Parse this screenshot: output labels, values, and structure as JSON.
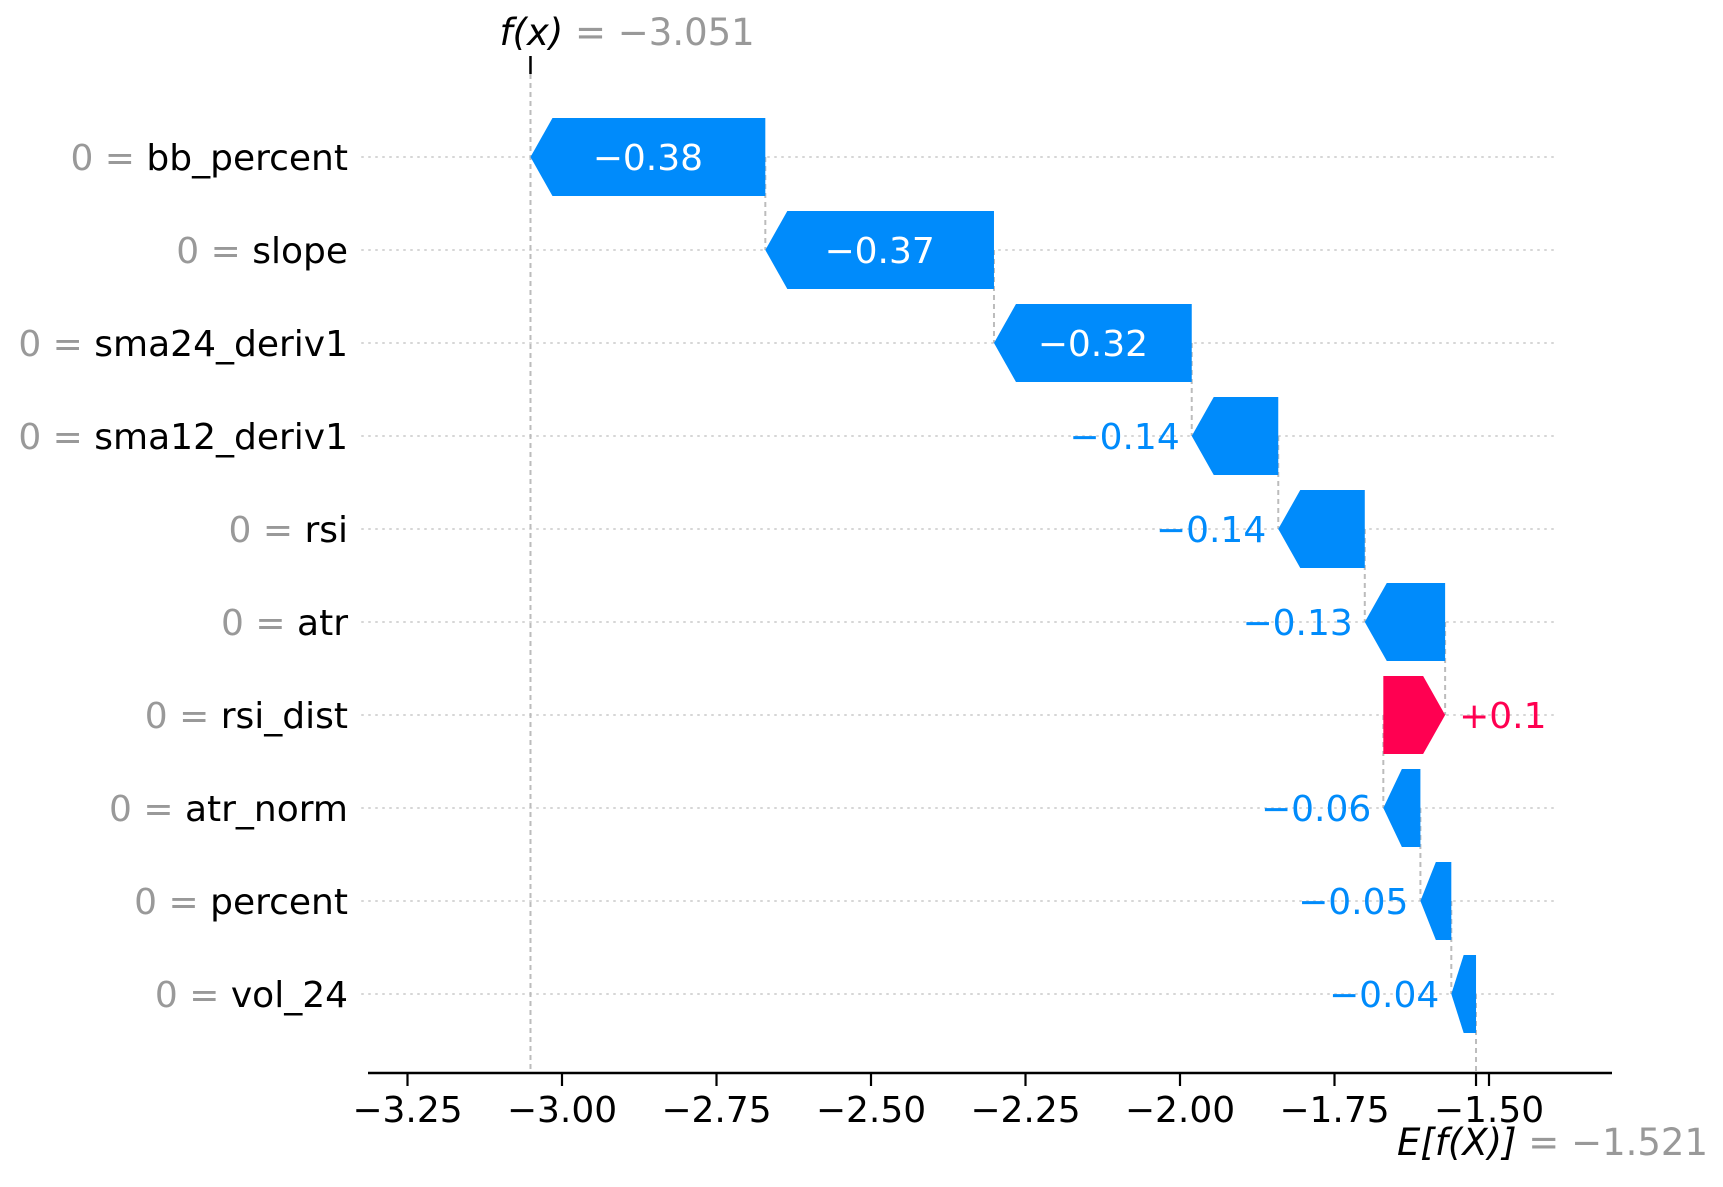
{
  "colors": {
    "negative": "#008bfb",
    "positive": "#ff0051",
    "muted_gray": "#999999",
    "connector": "#bcbcbc",
    "gridline": "#d6d6d6",
    "axis": "#000000",
    "inside_label": "#ffffff",
    "text": "#000000"
  },
  "chart_data": {
    "type": "bar",
    "subtype": "shap-waterfall",
    "title_prefix": "f(x)",
    "title_rest": " = −3.051",
    "fx_value": -3.051,
    "base_prefix": "E[f(X)]",
    "base_rest": " = −1.521",
    "base_value": -1.521,
    "xlim": [
      -3.4,
      -1.35
    ],
    "x_ticks": [
      {
        "v": -3.25,
        "label": "−3.25"
      },
      {
        "v": -3.0,
        "label": "−3.00"
      },
      {
        "v": -2.75,
        "label": "−2.75"
      },
      {
        "v": -2.5,
        "label": "−2.50"
      },
      {
        "v": -2.25,
        "label": "−2.25"
      },
      {
        "v": -2.0,
        "label": "−2.00"
      },
      {
        "v": -1.75,
        "label": "−1.75"
      },
      {
        "v": -1.5,
        "label": "−1.50"
      }
    ],
    "rows": [
      {
        "prefix": "0 = ",
        "feature": "bb_percent",
        "value": -0.38,
        "label": "−0.38"
      },
      {
        "prefix": "0 = ",
        "feature": "slope",
        "value": -0.37,
        "label": "−0.37"
      },
      {
        "prefix": "0 = ",
        "feature": "sma24_deriv1",
        "value": -0.32,
        "label": "−0.32"
      },
      {
        "prefix": "0 = ",
        "feature": "sma12_deriv1",
        "value": -0.14,
        "label": "−0.14"
      },
      {
        "prefix": "0 = ",
        "feature": "rsi",
        "value": -0.14,
        "label": "−0.14"
      },
      {
        "prefix": "0 = ",
        "feature": "atr",
        "value": -0.13,
        "label": "−0.13"
      },
      {
        "prefix": "0 = ",
        "feature": "rsi_dist",
        "value": 0.1,
        "label": "+0.1"
      },
      {
        "prefix": "0 = ",
        "feature": "atr_norm",
        "value": -0.06,
        "label": "−0.06"
      },
      {
        "prefix": "0 = ",
        "feature": "percent",
        "value": -0.05,
        "label": "−0.05"
      },
      {
        "prefix": "0 = ",
        "feature": "vol_24",
        "value": -0.04,
        "label": "−0.04"
      }
    ]
  }
}
